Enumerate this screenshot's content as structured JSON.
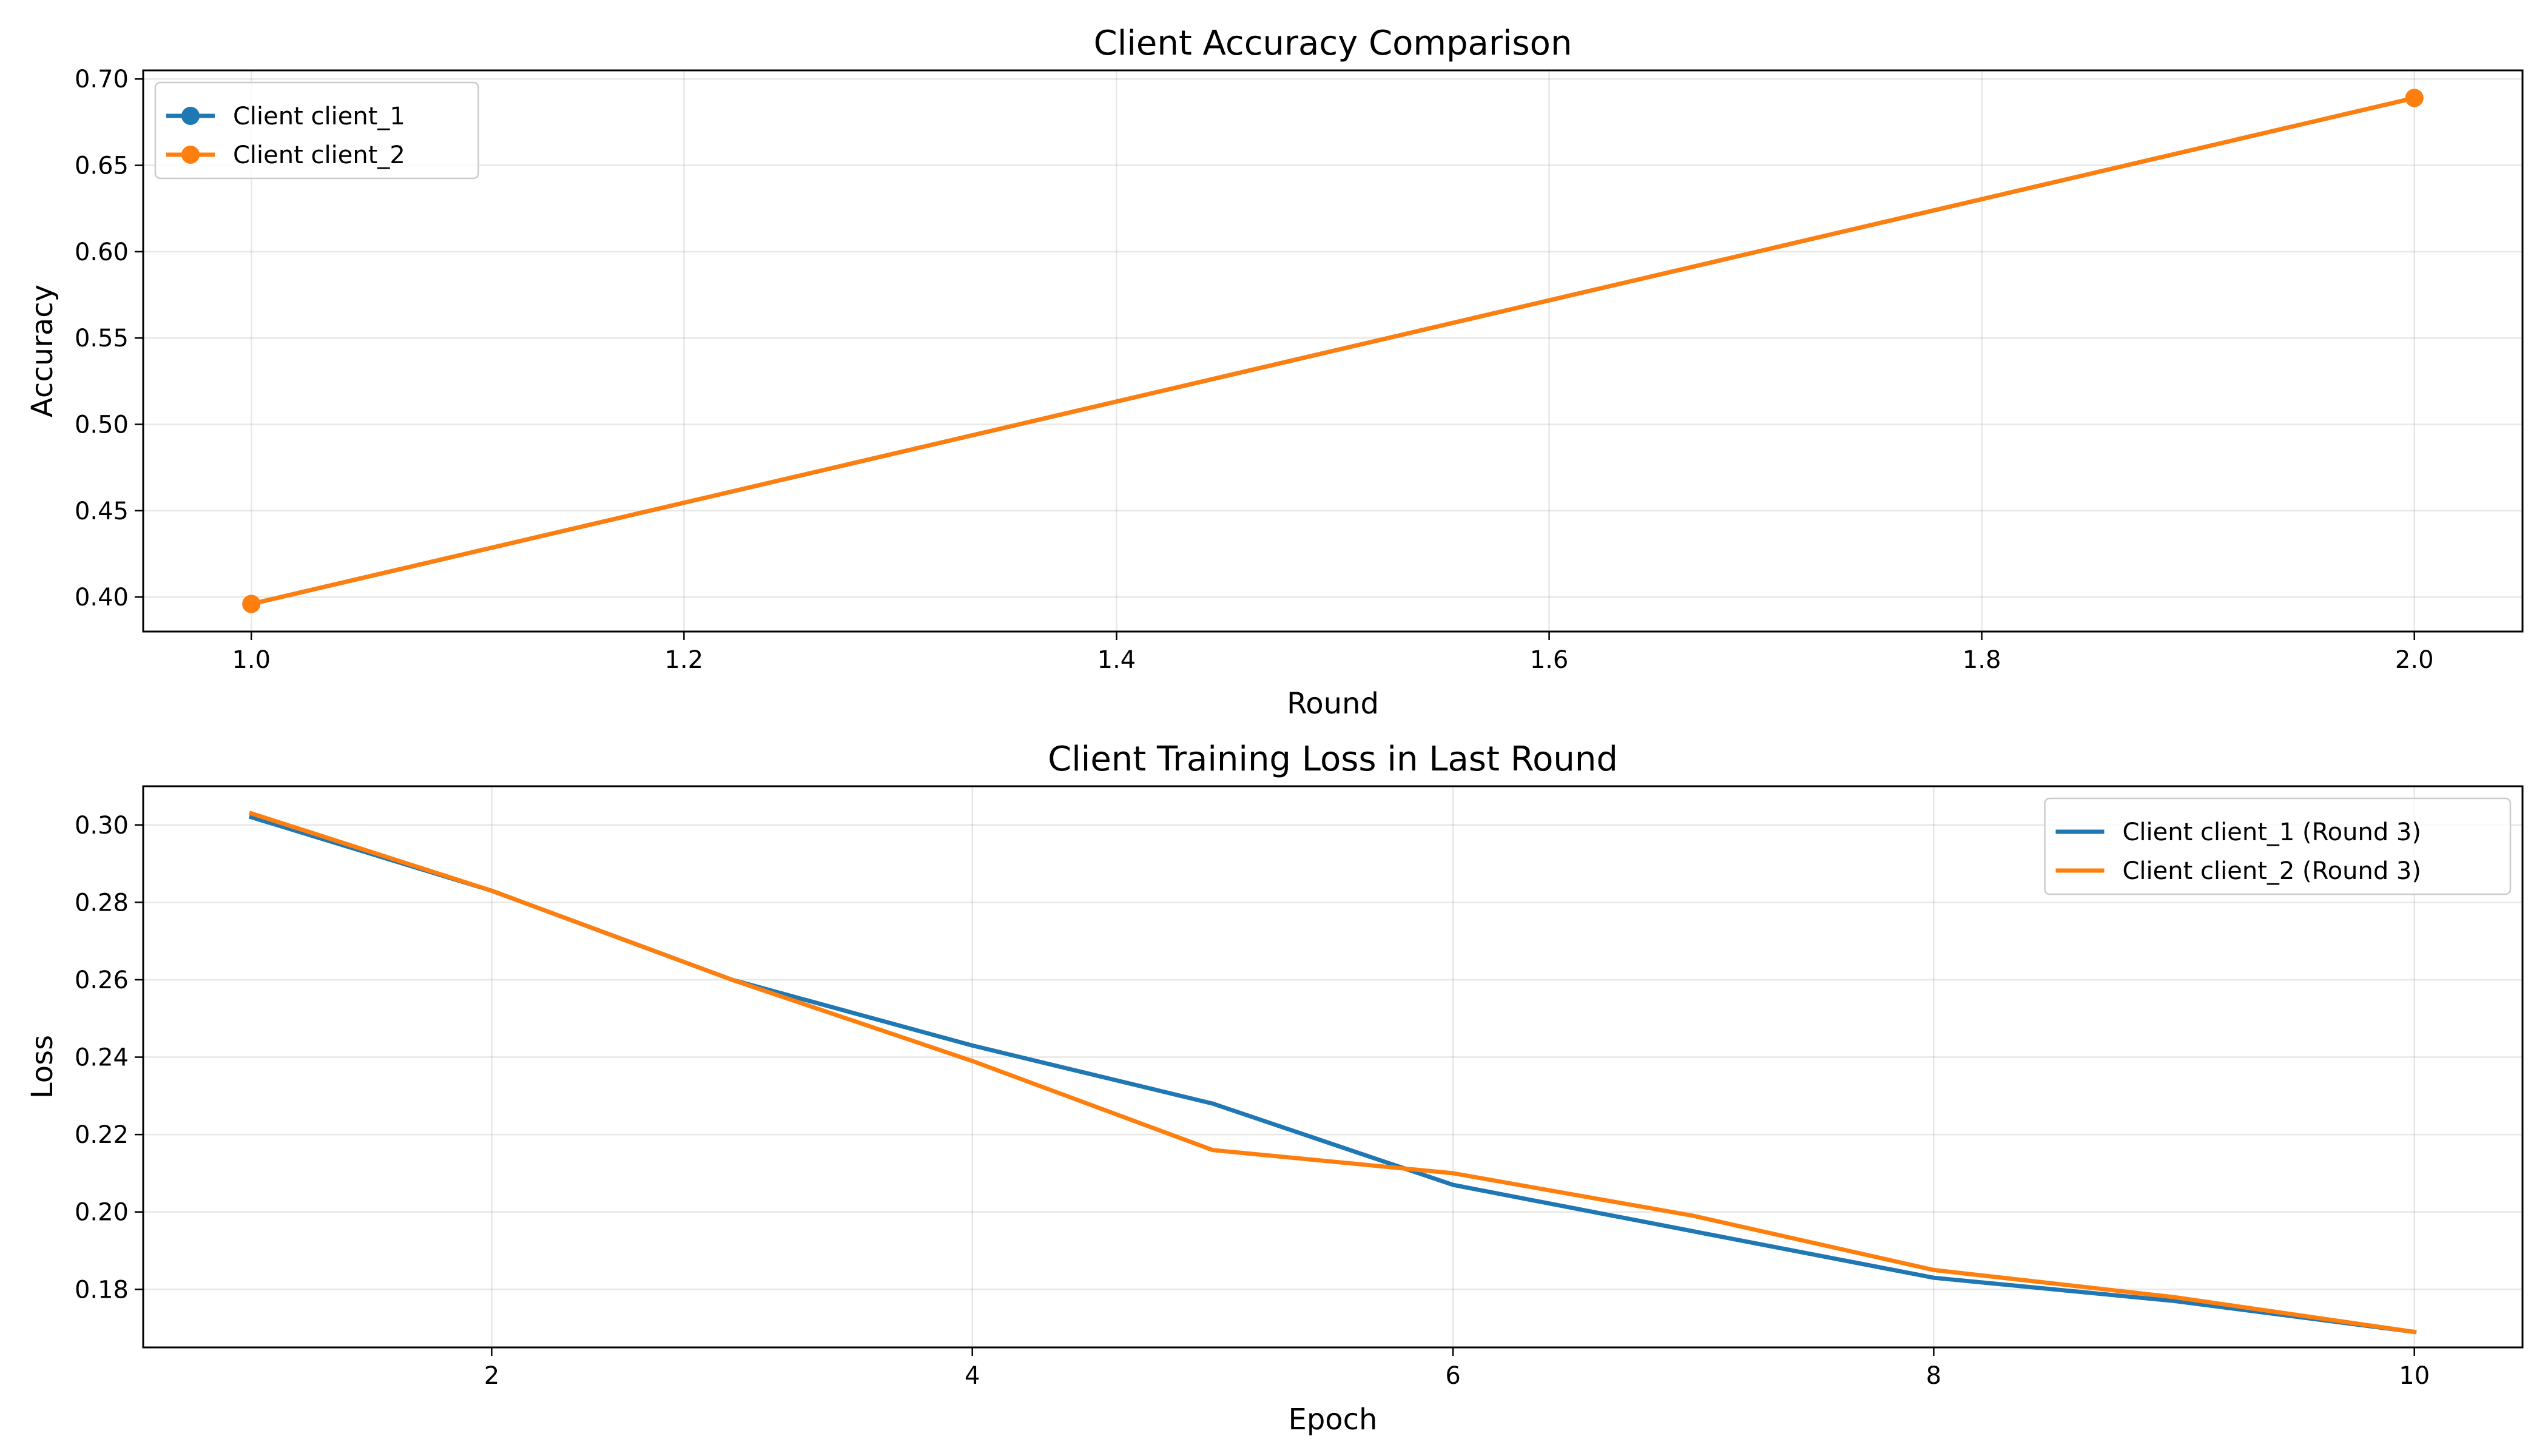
{
  "chart_data": [
    {
      "type": "line",
      "title": "Client Accuracy Comparison",
      "xlabel": "Round",
      "ylabel": "Accuracy",
      "xlim": [
        0.95,
        2.05
      ],
      "ylim": [
        0.38,
        0.705
      ],
      "xticks": [
        "1.0",
        "1.2",
        "1.4",
        "1.6",
        "1.8",
        "2.0"
      ],
      "yticks": [
        "0.40",
        "0.45",
        "0.50",
        "0.55",
        "0.60",
        "0.65",
        "0.70"
      ],
      "grid": true,
      "legend_position": "upper-left",
      "markers": true,
      "series": [
        {
          "name": "Client client_1",
          "color": "#1f77b4",
          "x": [
            1.0,
            2.0
          ],
          "y": [
            0.396,
            0.689
          ]
        },
        {
          "name": "Client client_2",
          "color": "#ff7f0e",
          "x": [
            1.0,
            2.0
          ],
          "y": [
            0.396,
            0.689
          ]
        }
      ]
    },
    {
      "type": "line",
      "title": "Client Training Loss in Last Round",
      "xlabel": "Epoch",
      "ylabel": "Loss",
      "xlim": [
        0.55,
        10.45
      ],
      "ylim": [
        0.165,
        0.31
      ],
      "xticks": [
        "2",
        "4",
        "6",
        "8",
        "10"
      ],
      "yticks": [
        "0.18",
        "0.20",
        "0.22",
        "0.24",
        "0.26",
        "0.28",
        "0.30"
      ],
      "grid": true,
      "legend_position": "upper-right",
      "markers": false,
      "series": [
        {
          "name": "Client client_1 (Round 3)",
          "color": "#1f77b4",
          "x": [
            1,
            2,
            3,
            4,
            5,
            6,
            7,
            8,
            9,
            10
          ],
          "y": [
            0.302,
            0.283,
            0.26,
            0.243,
            0.228,
            0.207,
            0.195,
            0.183,
            0.177,
            0.169
          ]
        },
        {
          "name": "Client client_2 (Round 3)",
          "color": "#ff7f0e",
          "x": [
            1,
            2,
            3,
            4,
            5,
            6,
            7,
            8,
            9,
            10
          ],
          "y": [
            0.303,
            0.283,
            0.26,
            0.239,
            0.216,
            0.21,
            0.199,
            0.185,
            0.178,
            0.169
          ]
        }
      ]
    }
  ]
}
